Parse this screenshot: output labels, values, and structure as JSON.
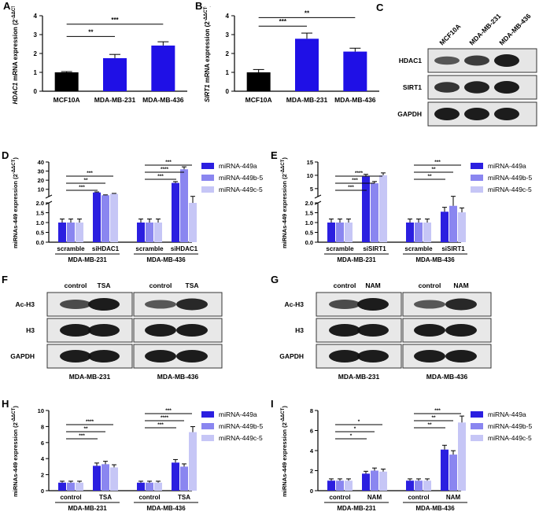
{
  "panel_letters": [
    "A",
    "B",
    "C",
    "D",
    "E",
    "F",
    "G",
    "H",
    "I"
  ],
  "colors": {
    "black": "#000000",
    "blue": "#1f10e6",
    "c449a": "#2b1fe0",
    "c449b": "#8a86f0",
    "c449c": "#c6c6f6"
  },
  "charts": [
    {
      "id": "A",
      "letter": "A",
      "type": "bar",
      "ylabel_gene": "HDAC1",
      "ylabel_rest": " mRNA expression (2",
      "ylabel_sup": "-ΔΔCT",
      "ylabel_end": ")",
      "categories": [
        "MCF10A",
        "MDA-MB-231",
        "MDA-MB-436"
      ],
      "values": [
        1.0,
        1.75,
        2.42
      ],
      "errors": [
        0.04,
        0.2,
        0.2
      ],
      "colors": [
        "#000000",
        "#1f10e6",
        "#1f10e6"
      ],
      "ylim": [
        0,
        4
      ],
      "yticks": [
        "0",
        "1",
        "2",
        "3",
        "4"
      ],
      "sig": [
        {
          "from": 0,
          "to": 1,
          "label": "**",
          "y": 2.9
        },
        {
          "from": 0,
          "to": 2,
          "label": "***",
          "y": 3.55
        }
      ]
    },
    {
      "id": "B",
      "letter": "B",
      "type": "bar",
      "ylabel_gene": "SIRT1",
      "ylabel_rest": " mRNA expression (2",
      "ylabel_sup": "-ΔΔCT",
      "ylabel_end": ")",
      "categories": [
        "MCF10A",
        "MDA-MB-231",
        "MDA-MB-436"
      ],
      "values": [
        1.0,
        2.78,
        2.1
      ],
      "errors": [
        0.15,
        0.3,
        0.18
      ],
      "colors": [
        "#000000",
        "#1f10e6",
        "#1f10e6"
      ],
      "ylim": [
        0,
        4
      ],
      "yticks": [
        "0",
        "1",
        "2",
        "3",
        "4"
      ],
      "sig": [
        {
          "from": 0,
          "to": 1,
          "label": "***",
          "y": 3.45
        },
        {
          "from": 0,
          "to": 2,
          "label": "**",
          "y": 3.9
        }
      ]
    }
  ],
  "blot_c": {
    "letter": "C",
    "lanes": [
      "MCF10A",
      "MDA-MB-231",
      "MDA-MB-436"
    ],
    "rows": [
      "HDAC1",
      "SIRT1",
      "GAPDH"
    ]
  },
  "grouped": [
    {
      "id": "D",
      "letter": "D",
      "ylabel": "miRNAs-449 expression (2",
      "ylabel_sup": "-ΔΔCT",
      "ylabel_end": ")",
      "categories": [
        "scramble",
        "siHDAC1",
        "scramble",
        "siHDAC1"
      ],
      "groups": [
        "MDA-MB-231",
        "MDA-MB-436"
      ],
      "legend": [
        "miRNA-449a",
        "miRNA-449b-5p",
        "miRNA-449c-5p"
      ],
      "series": [
        [
          1.0,
          6.5,
          1.0,
          17
        ],
        [
          1.0,
          3.5,
          1.0,
          32
        ],
        [
          1.0,
          5.0,
          1.0,
          2.0
        ]
      ],
      "upper_ticks": [
        "2",
        "10",
        "20",
        "30",
        "40"
      ],
      "lower_ticks": [
        "0.0",
        "0.5",
        "1.0",
        "1.5",
        "2.0"
      ],
      "upper_range": [
        2,
        40
      ],
      "sig": [
        [
          "***",
          "**",
          "***"
        ],
        [
          "***",
          "****",
          "***"
        ]
      ]
    },
    {
      "id": "E",
      "letter": "E",
      "ylabel": "miRNAs-449 expression (2",
      "ylabel_sup": "-ΔΔCT",
      "ylabel_end": ")",
      "categories": [
        "scramble",
        "siSIRT1",
        "scramble",
        "siSIRT1"
      ],
      "groups": [
        "MDA-MB-231",
        "MDA-MB-436"
      ],
      "legend": [
        "miRNA-449a",
        "miRNA-449b-5p",
        "miRNA-449c-5p"
      ],
      "series": [
        [
          1.0,
          9.5,
          1.0,
          1.55
        ],
        [
          1.0,
          7.0,
          1.0,
          1.85
        ],
        [
          1.0,
          10.0,
          1.0,
          1.52
        ]
      ],
      "upper_ticks": [
        "2",
        "5",
        "10",
        "15"
      ],
      "lower_ticks": [
        "0.0",
        "0.5",
        "1.0",
        "1.5",
        "2.0"
      ],
      "upper_range": [
        2,
        15
      ],
      "sig": [
        [
          "***",
          "***",
          "****"
        ],
        [
          "**",
          "**",
          "***"
        ]
      ]
    },
    {
      "id": "H",
      "letter": "H",
      "ylabel": "miRNAs-449 expression (2",
      "ylabel_sup": "-ΔΔCT",
      "ylabel_end": ")",
      "categories": [
        "control",
        "TSA",
        "control",
        "TSA"
      ],
      "groups": [
        "MDA-MB-231",
        "MDA-MB-436"
      ],
      "legend": [
        "miRNA-449a",
        "miRNA-449b-5p",
        "miRNA-449c-5p"
      ],
      "series": [
        [
          1.0,
          3.1,
          1.0,
          3.5
        ],
        [
          1.0,
          3.3,
          1.0,
          3.0
        ],
        [
          1.0,
          2.9,
          1.0,
          7.3
        ]
      ],
      "ticks": [
        "0",
        "2",
        "4",
        "6",
        "8",
        "10"
      ],
      "ylim": [
        0,
        10
      ],
      "sig": [
        [
          "***",
          "**",
          "****"
        ],
        [
          "***",
          "****",
          "***"
        ]
      ]
    },
    {
      "id": "I",
      "letter": "I",
      "ylabel": "miRNAs-449 expression (2",
      "ylabel_sup": "-ΔΔCT",
      "ylabel_end": ")",
      "categories": [
        "control",
        "NAM",
        "control",
        "NAM"
      ],
      "groups": [
        "MDA-MB-231",
        "MDA-MB-436"
      ],
      "legend": [
        "miRNA-449a",
        "miRNA-449b-5p",
        "miRNA-449c-5p"
      ],
      "series": [
        [
          1.0,
          1.7,
          1.0,
          4.1
        ],
        [
          1.0,
          2.0,
          1.0,
          3.6
        ],
        [
          1.0,
          1.9,
          1.0,
          6.8
        ]
      ],
      "ticks": [
        "0",
        "2",
        "4",
        "6",
        "8"
      ],
      "ylim": [
        0,
        8
      ],
      "sig": [
        [
          "*",
          "*",
          "*"
        ],
        [
          "**",
          "**",
          "***"
        ]
      ]
    }
  ],
  "blots_fg": [
    {
      "letter": "F",
      "treat": [
        "control",
        "TSA",
        "control",
        "TSA"
      ],
      "rows": [
        "Ac-H3",
        "H3",
        "GAPDH"
      ],
      "cells": [
        "MDA-MB-231",
        "MDA-MB-436"
      ]
    },
    {
      "letter": "G",
      "treat": [
        "control",
        "NAM",
        "control",
        "NAM"
      ],
      "rows": [
        "Ac-H3",
        "H3",
        "GAPDH"
      ],
      "cells": [
        "MDA-MB-231",
        "MDA-MB-436"
      ]
    }
  ]
}
